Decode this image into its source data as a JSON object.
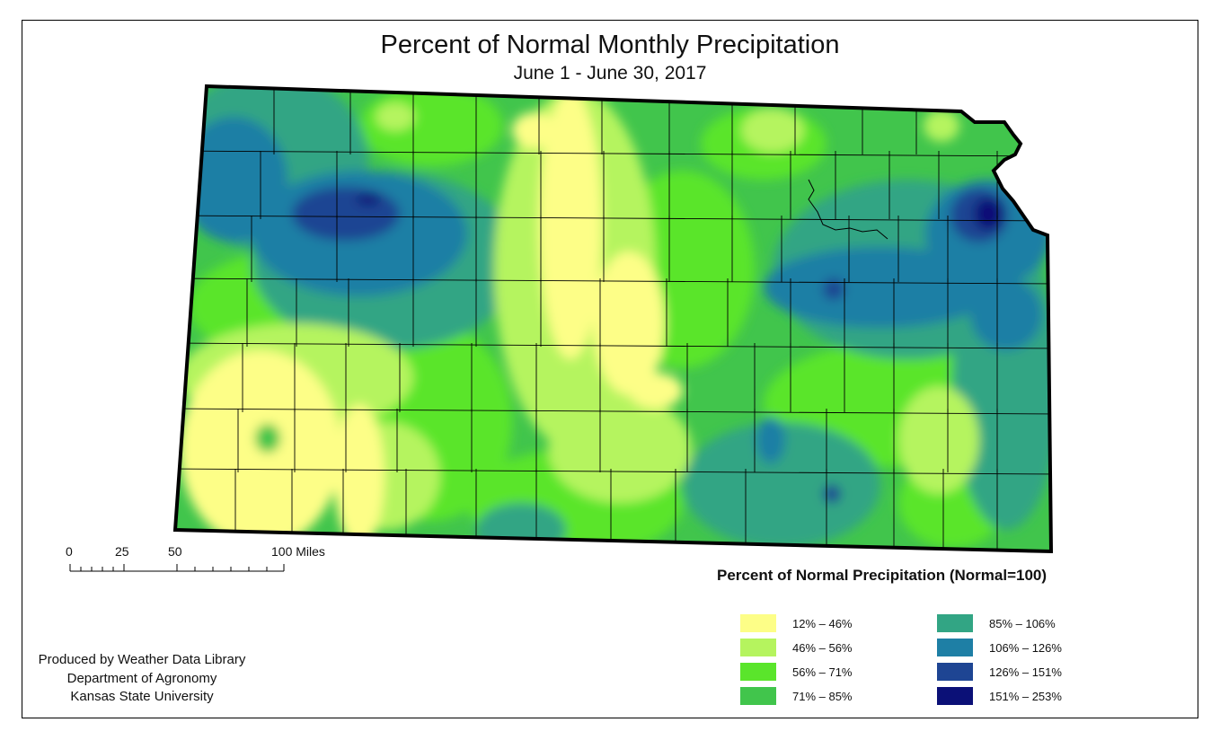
{
  "title": "Percent of Normal Monthly Precipitation",
  "subtitle": "June 1 - June 30, 2017",
  "scale_bar": {
    "labels": [
      "0",
      "25",
      "50",
      "100 Miles"
    ]
  },
  "legend": {
    "title": "Percent of Normal Precipitation (Normal=100)",
    "items": [
      {
        "label": "12% – 46%",
        "color": "#fdfe87"
      },
      {
        "label": "46% – 56%",
        "color": "#b5f45e"
      },
      {
        "label": "56% – 71%",
        "color": "#5ae52b"
      },
      {
        "label": "71% – 85%",
        "color": "#41c54c"
      },
      {
        "label": "85% – 106%",
        "color": "#32a584"
      },
      {
        "label": "106% – 126%",
        "color": "#1e7fa5"
      },
      {
        "label": "126% – 151%",
        "color": "#1e4593"
      },
      {
        "label": "151% – 253%",
        "color": "#0b1077"
      }
    ]
  },
  "credits": {
    "line1": "Produced by Weather Data Library",
    "line2": "Department of Agronomy",
    "line3": "Kansas State University"
  }
}
